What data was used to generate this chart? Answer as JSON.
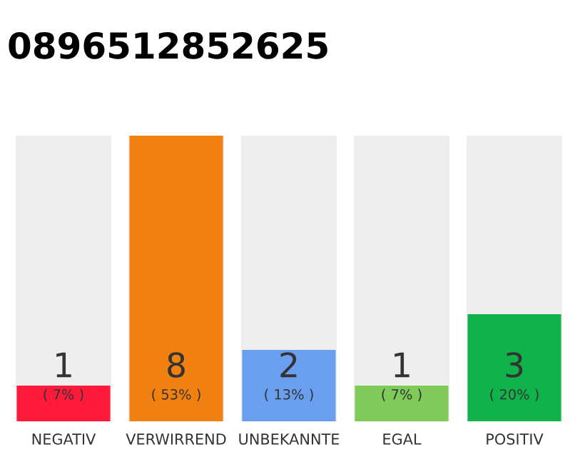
{
  "chart_data": {
    "type": "bar",
    "title": "0896512852625",
    "categories": [
      "NEGATIV",
      "VERWIRREND",
      "UNBEKANNTE",
      "EGAL",
      "POSITIV"
    ],
    "values": [
      1,
      8,
      2,
      1,
      3
    ],
    "colors": [
      "#ff1a3c",
      "#f28010",
      "#6a9ff0",
      "#7ecb5a",
      "#0fb34a"
    ],
    "ylim": [
      0,
      8
    ],
    "tick_labels": "x",
    "data_labels": true,
    "grid": false,
    "annotations": [
      "( 7% )",
      "( 53% )",
      "( 13% )",
      "( 7% )",
      "( 20% )"
    ]
  }
}
